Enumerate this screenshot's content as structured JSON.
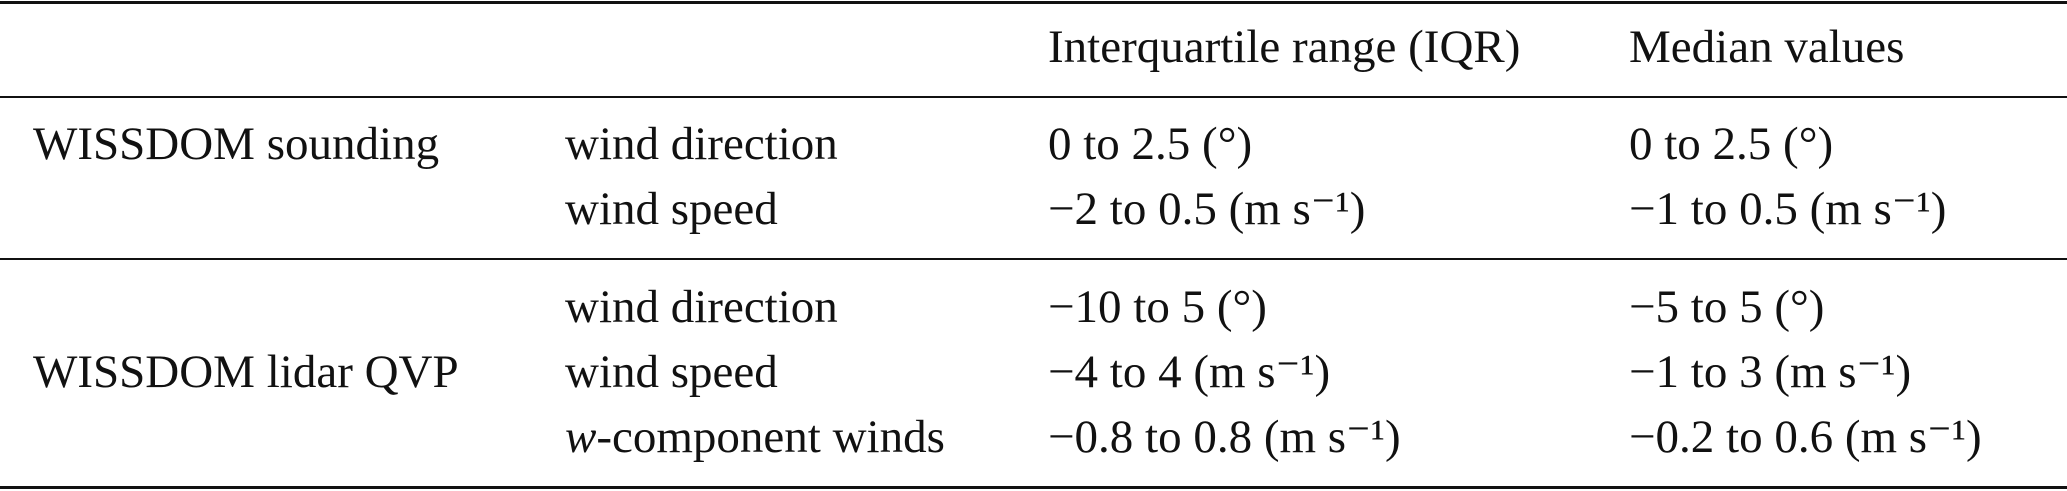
{
  "table": {
    "headers": [
      "",
      "",
      "Interquartile range (IQR)",
      "Median values"
    ],
    "groups": [
      {
        "label": "WISSDOM sounding",
        "rows": [
          {
            "variable": "wind direction",
            "iqr": "0 to 2.5 (°)",
            "median": "0 to 2.5 (°)"
          },
          {
            "variable": "wind speed",
            "iqr": "−2 to 0.5 (m s⁻¹)",
            "median": "−1 to 0.5 (m s⁻¹)"
          }
        ]
      },
      {
        "label": "WISSDOM lidar QVP",
        "rows": [
          {
            "variable": "wind direction",
            "iqr": "−10 to 5 (°)",
            "median": "−5 to 5 (°)"
          },
          {
            "variable": "wind speed",
            "iqr": "−4 to 4 (m s⁻¹)",
            "median": "−1 to 3 (m s⁻¹)"
          },
          {
            "variable_italic": "w",
            "variable": "-component winds",
            "iqr": "−0.8 to 0.8 (m s⁻¹)",
            "median": "−0.2 to 0.6 (m s⁻¹)"
          }
        ]
      }
    ]
  }
}
